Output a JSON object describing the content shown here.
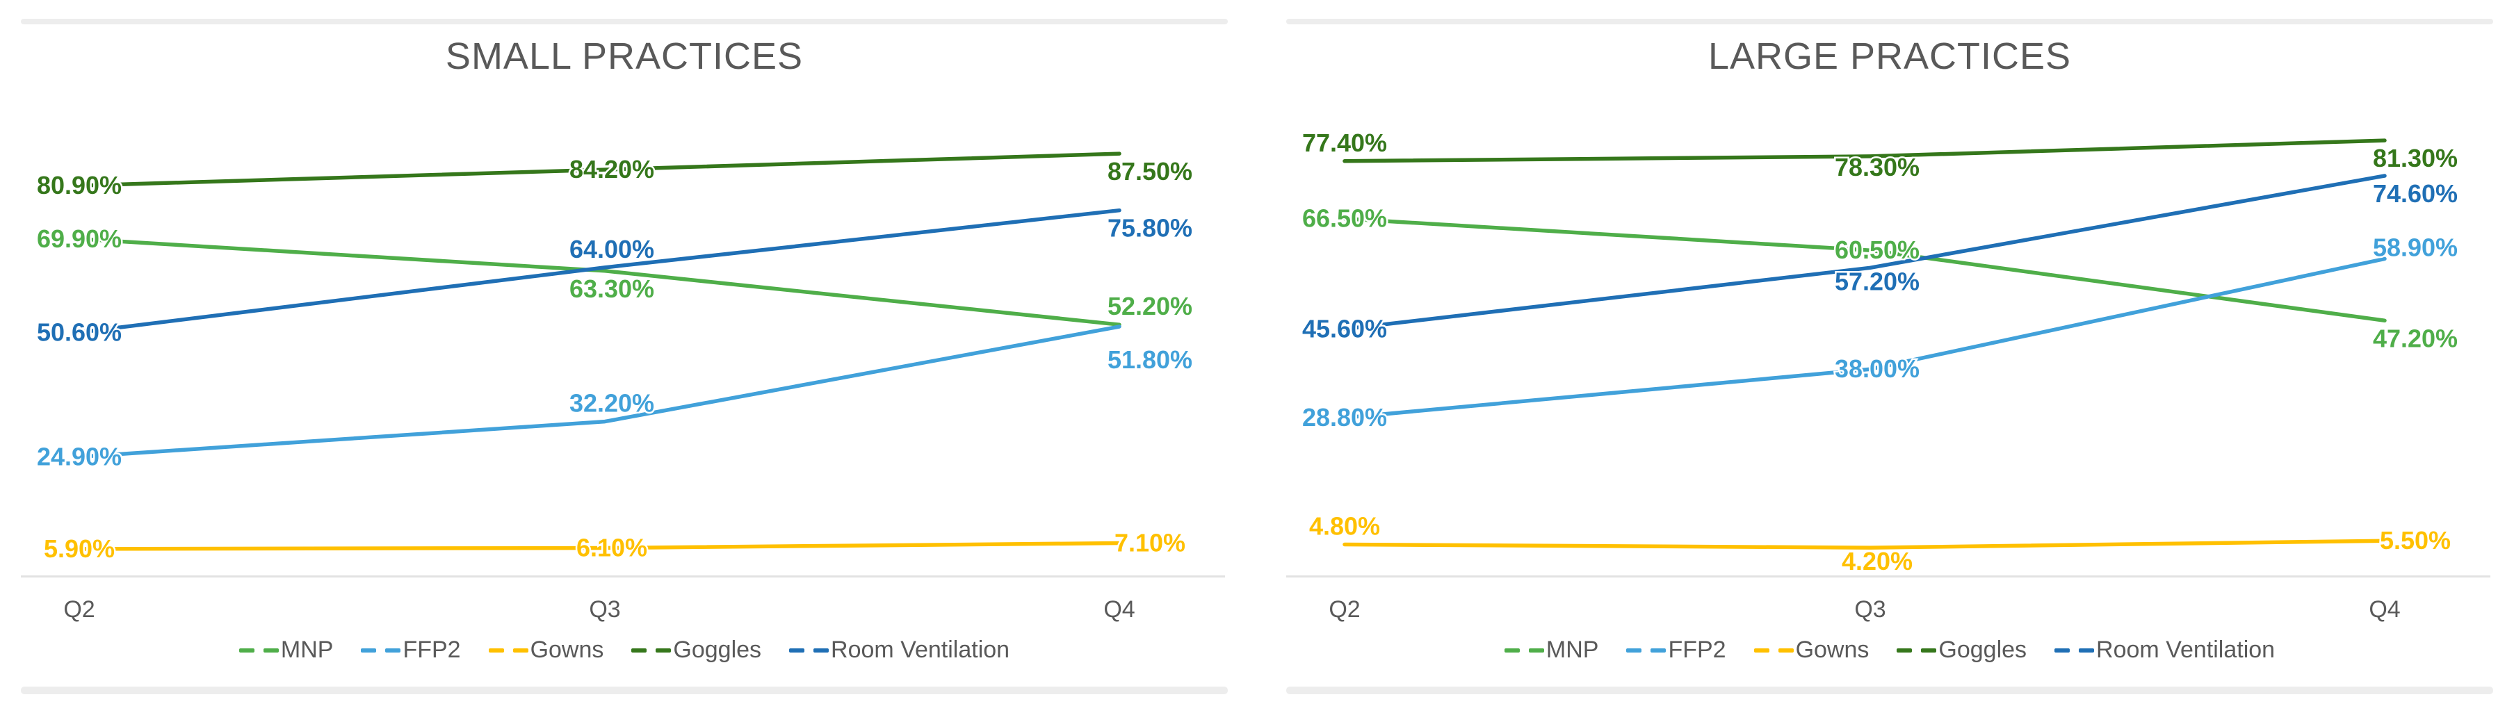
{
  "colors": {
    "background": "#FFFFFF",
    "title_text": "#595959",
    "axis_text": "#595959",
    "legend_text": "#595959",
    "axis_line": "#E2E2E2",
    "panel_border": "#EDEDED",
    "mnp_green": "#4FAE49",
    "ffp2_light_blue": "#41A1DA",
    "gowns_yellow": "#FFC000",
    "goggles_dark_green": "#35771B",
    "room_ventilation_dark_blue": "#1F6FB5"
  },
  "chart_data": [
    {
      "type": "line",
      "title": "SMALL PRACTICES",
      "categories": [
        "Q2",
        "Q3",
        "Q4"
      ],
      "xlabel": "",
      "ylabel": "",
      "ylim": [
        0,
        100
      ],
      "grid": false,
      "legend_position": "bottom",
      "series": [
        {
          "name": "MNP",
          "color": "#4FAE49",
          "values": [
            69.9,
            63.3,
            52.2
          ],
          "labels": [
            "69.90%",
            "63.30%",
            "52.20%"
          ],
          "label_pos": [
            "on",
            "below",
            "above"
          ]
        },
        {
          "name": "FFP2",
          "color": "#41A1DA",
          "values": [
            24.9,
            32.2,
            51.8
          ],
          "labels": [
            "24.90%",
            "32.20%",
            "51.80%"
          ],
          "label_pos": [
            "on",
            "above",
            "below+22"
          ]
        },
        {
          "name": "Gowns",
          "color": "#FFC000",
          "values": [
            5.9,
            6.1,
            7.1
          ],
          "labels": [
            "5.90%",
            "6.10%",
            "7.10%"
          ],
          "label_pos": [
            "on",
            "on",
            "on"
          ]
        },
        {
          "name": "Goggles",
          "color": "#35771B",
          "values": [
            80.9,
            84.2,
            87.5
          ],
          "labels": [
            "80.90%",
            "84.20%",
            "87.50%"
          ],
          "label_pos": [
            "on",
            "on",
            "below"
          ]
        },
        {
          "name": "Room Ventilation",
          "color": "#1F6FB5",
          "values": [
            50.6,
            64.0,
            75.8
          ],
          "labels": [
            "50.60%",
            "64.00%",
            "75.80%"
          ],
          "label_pos": [
            "on",
            "above",
            "below"
          ]
        }
      ]
    },
    {
      "type": "line",
      "title": "LARGE PRACTICES",
      "categories": [
        "Q2",
        "Q3",
        "Q4"
      ],
      "xlabel": "",
      "ylabel": "",
      "ylim": [
        0,
        100
      ],
      "grid": false,
      "legend_position": "bottom",
      "series": [
        {
          "name": "MNP",
          "color": "#4FAE49",
          "values": [
            66.5,
            60.5,
            47.2
          ],
          "labels": [
            "66.50%",
            "60.50%",
            "47.20%"
          ],
          "label_pos": [
            "on",
            "on",
            "below"
          ]
        },
        {
          "name": "FFP2",
          "color": "#41A1DA",
          "values": [
            28.8,
            38.0,
            58.9
          ],
          "labels": [
            "28.80%",
            "38.00%",
            "58.90%"
          ],
          "label_pos": [
            "on",
            "on",
            "above+10"
          ]
        },
        {
          "name": "Gowns",
          "color": "#FFC000",
          "values": [
            4.8,
            4.2,
            5.5
          ],
          "labels": [
            "4.80%",
            "4.20%",
            "5.50%"
          ],
          "label_pos": [
            "above",
            "below-6",
            "on"
          ]
        },
        {
          "name": "Goggles",
          "color": "#35771B",
          "values": [
            77.4,
            78.3,
            81.3
          ],
          "labels": [
            "77.40%",
            "78.30%",
            "81.30%"
          ],
          "label_pos": [
            "above",
            "below-10",
            "below"
          ]
        },
        {
          "name": "Room Ventilation",
          "color": "#1F6FB5",
          "values": [
            45.6,
            57.2,
            74.6
          ],
          "labels": [
            "45.60%",
            "57.20%",
            "74.60%"
          ],
          "label_pos": [
            "on",
            "below-6",
            "below"
          ]
        }
      ]
    }
  ]
}
